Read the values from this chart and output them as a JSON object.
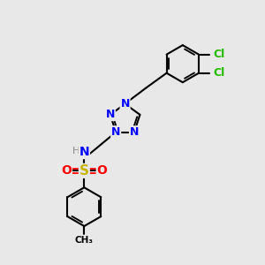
{
  "bg_color": "#e8e8e8",
  "bond_color": "#000000",
  "bond_width": 1.5,
  "figsize": [
    3.0,
    3.0
  ],
  "dpi": 100,
  "xlim": [
    0.5,
    6.5
  ],
  "ylim": [
    0.5,
    7.5
  ]
}
